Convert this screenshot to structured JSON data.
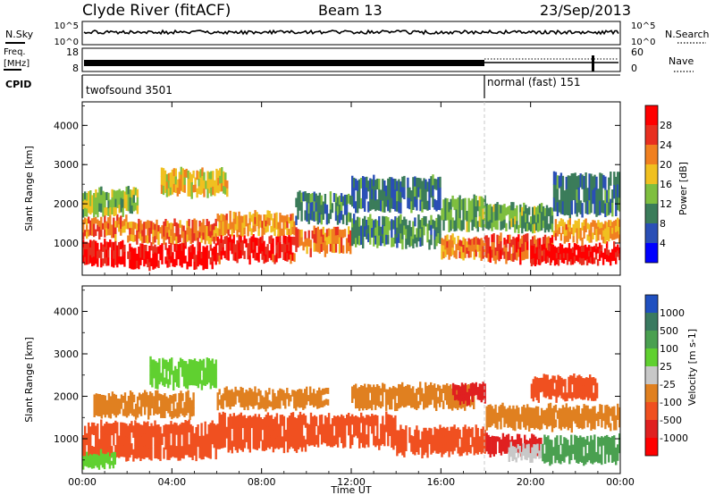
{
  "header": {
    "title": "Clyde River (fitACF)",
    "beam": "Beam 13",
    "date": "23/Sep/2013"
  },
  "top_panels": {
    "nsky_label": "N.Sky",
    "nsky_ticks": [
      "10^5",
      "10^0"
    ],
    "nsearch_label": "N.Search",
    "nsearch_ticks": [
      "10^5",
      "10^0"
    ],
    "freq_label_1": "Freq.",
    "freq_label_2": "[MHz]",
    "freq_ticks": [
      "18",
      "8"
    ],
    "nave_label": "Nave",
    "nave_ticks": [
      "60",
      "0"
    ],
    "cpid_label": "CPID",
    "cpid_entries": [
      {
        "label": "twofsound 3501",
        "start_hour": 0
      },
      {
        "label": "normal (fast) 151",
        "start_hour": 18
      }
    ]
  },
  "chart_data": [
    {
      "type": "heatmap",
      "quantity": "Power",
      "ylabel": "Slant Range [km]",
      "xlabel": "Time UT",
      "x_ticks": [
        "00:00",
        "04:00",
        "08:00",
        "12:00",
        "16:00",
        "20:00",
        "00:00"
      ],
      "xlim_hours": [
        0,
        24
      ],
      "y_ticks": [
        1000,
        2000,
        3000,
        4000
      ],
      "ylim": [
        180,
        4600
      ],
      "colorbar": {
        "label": "Power [dB]",
        "ticks": [
          4,
          8,
          12,
          16,
          20,
          24,
          28
        ],
        "range": [
          0,
          32
        ],
        "colors": [
          "#0000ff",
          "#2a4fb6",
          "#3b7c5a",
          "#7fbf3f",
          "#f0c020",
          "#f08020",
          "#e83020",
          "#ff0000"
        ]
      },
      "bands": [
        {
          "t0": 0.0,
          "t1": 2.0,
          "r0": 400,
          "r1": 1100,
          "level": 28
        },
        {
          "t0": 0.0,
          "t1": 2.0,
          "r0": 1100,
          "r1": 1700,
          "level": 22
        },
        {
          "t0": 0.0,
          "t1": 2.5,
          "r0": 1700,
          "r1": 2400,
          "level": 14
        },
        {
          "t0": 2.0,
          "t1": 6.0,
          "r0": 350,
          "r1": 1000,
          "level": 29
        },
        {
          "t0": 2.0,
          "t1": 6.0,
          "r0": 1000,
          "r1": 1600,
          "level": 22
        },
        {
          "t0": 3.5,
          "t1": 6.5,
          "r0": 2200,
          "r1": 2900,
          "level": 17
        },
        {
          "t0": 6.0,
          "t1": 9.5,
          "r0": 500,
          "r1": 1200,
          "level": 27
        },
        {
          "t0": 6.0,
          "t1": 9.5,
          "r0": 1200,
          "r1": 1800,
          "level": 20
        },
        {
          "t0": 9.5,
          "t1": 12.0,
          "r0": 700,
          "r1": 1400,
          "level": 22
        },
        {
          "t0": 9.5,
          "t1": 12.0,
          "r0": 1500,
          "r1": 2300,
          "level": 9
        },
        {
          "t0": 12.0,
          "t1": 16.0,
          "r0": 900,
          "r1": 1700,
          "level": 10
        },
        {
          "t0": 12.0,
          "t1": 16.0,
          "r0": 1800,
          "r1": 2700,
          "level": 8
        },
        {
          "t0": 16.0,
          "t1": 18.0,
          "r0": 600,
          "r1": 1200,
          "level": 22
        },
        {
          "t0": 16.0,
          "t1": 18.0,
          "r0": 1300,
          "r1": 2200,
          "level": 12
        },
        {
          "t0": 18.0,
          "t1": 21.0,
          "r0": 500,
          "r1": 1200,
          "level": 25
        },
        {
          "t0": 18.0,
          "t1": 21.0,
          "r0": 1300,
          "r1": 2000,
          "level": 12
        },
        {
          "t0": 20.0,
          "t1": 24.0,
          "r0": 450,
          "r1": 1000,
          "level": 29
        },
        {
          "t0": 21.0,
          "t1": 24.0,
          "r0": 1000,
          "r1": 1600,
          "level": 20
        },
        {
          "t0": 21.0,
          "t1": 24.0,
          "r0": 1700,
          "r1": 2800,
          "level": 9
        }
      ]
    },
    {
      "type": "heatmap",
      "quantity": "Velocity",
      "ylabel": "Slant Range [km]",
      "xlabel": "Time UT",
      "x_ticks": [
        "00:00",
        "04:00",
        "08:00",
        "12:00",
        "16:00",
        "20:00",
        "00:00"
      ],
      "xlim_hours": [
        0,
        24
      ],
      "y_ticks": [
        1000,
        2000,
        3000,
        4000
      ],
      "ylim": [
        180,
        4600
      ],
      "colorbar": {
        "label": "Velocity [m s-1]",
        "ticks": [
          "1000",
          "500",
          "100",
          "25",
          "-25",
          "-100",
          "-500",
          "-1000"
        ],
        "colors": [
          "#2050c0",
          "#3a7a60",
          "#4aa050",
          "#60d030",
          "#c8c8c8",
          "#e08020",
          "#f05020",
          "#e02020",
          "#ff0000"
        ]
      },
      "bands": [
        {
          "t0": 0.0,
          "t1": 2.0,
          "r0": 500,
          "r1": 1400,
          "level": "-100"
        },
        {
          "t0": 0.0,
          "t1": 1.5,
          "r0": 300,
          "r1": 700,
          "level": "100"
        },
        {
          "t0": 0.5,
          "t1": 5.0,
          "r0": 1500,
          "r1": 2100,
          "level": "-25"
        },
        {
          "t0": 2.0,
          "t1": 6.0,
          "r0": 500,
          "r1": 1400,
          "level": "-100"
        },
        {
          "t0": 3.0,
          "t1": 6.0,
          "r0": 2200,
          "r1": 2900,
          "level": "100"
        },
        {
          "t0": 6.0,
          "t1": 10.0,
          "r0": 700,
          "r1": 1600,
          "level": "-100"
        },
        {
          "t0": 6.0,
          "t1": 11.0,
          "r0": 1700,
          "r1": 2200,
          "level": "-25"
        },
        {
          "t0": 10.0,
          "t1": 14.0,
          "r0": 800,
          "r1": 1600,
          "level": "-100"
        },
        {
          "t0": 12.0,
          "t1": 17.5,
          "r0": 1700,
          "r1": 2300,
          "level": "-25"
        },
        {
          "t0": 14.0,
          "t1": 18.0,
          "r0": 600,
          "r1": 1300,
          "level": "-100"
        },
        {
          "t0": 16.5,
          "t1": 18.0,
          "r0": 1800,
          "r1": 2300,
          "level": "-500"
        },
        {
          "t0": 18.0,
          "t1": 20.5,
          "r0": 600,
          "r1": 1100,
          "level": "-500"
        },
        {
          "t0": 18.0,
          "t1": 21.0,
          "r0": 1200,
          "r1": 1800,
          "level": "-25"
        },
        {
          "t0": 19.0,
          "t1": 20.5,
          "r0": 500,
          "r1": 900,
          "level": "25"
        },
        {
          "t0": 20.0,
          "t1": 23.0,
          "r0": 1900,
          "r1": 2500,
          "level": "-100"
        },
        {
          "t0": 20.5,
          "t1": 24.0,
          "r0": 400,
          "r1": 1100,
          "level": "500"
        },
        {
          "t0": 21.0,
          "t1": 24.0,
          "r0": 1200,
          "r1": 1800,
          "level": "-25"
        }
      ]
    }
  ],
  "colors": {
    "axis": "#000000",
    "background": "#ffffff",
    "divider": "#b0b0b0"
  }
}
